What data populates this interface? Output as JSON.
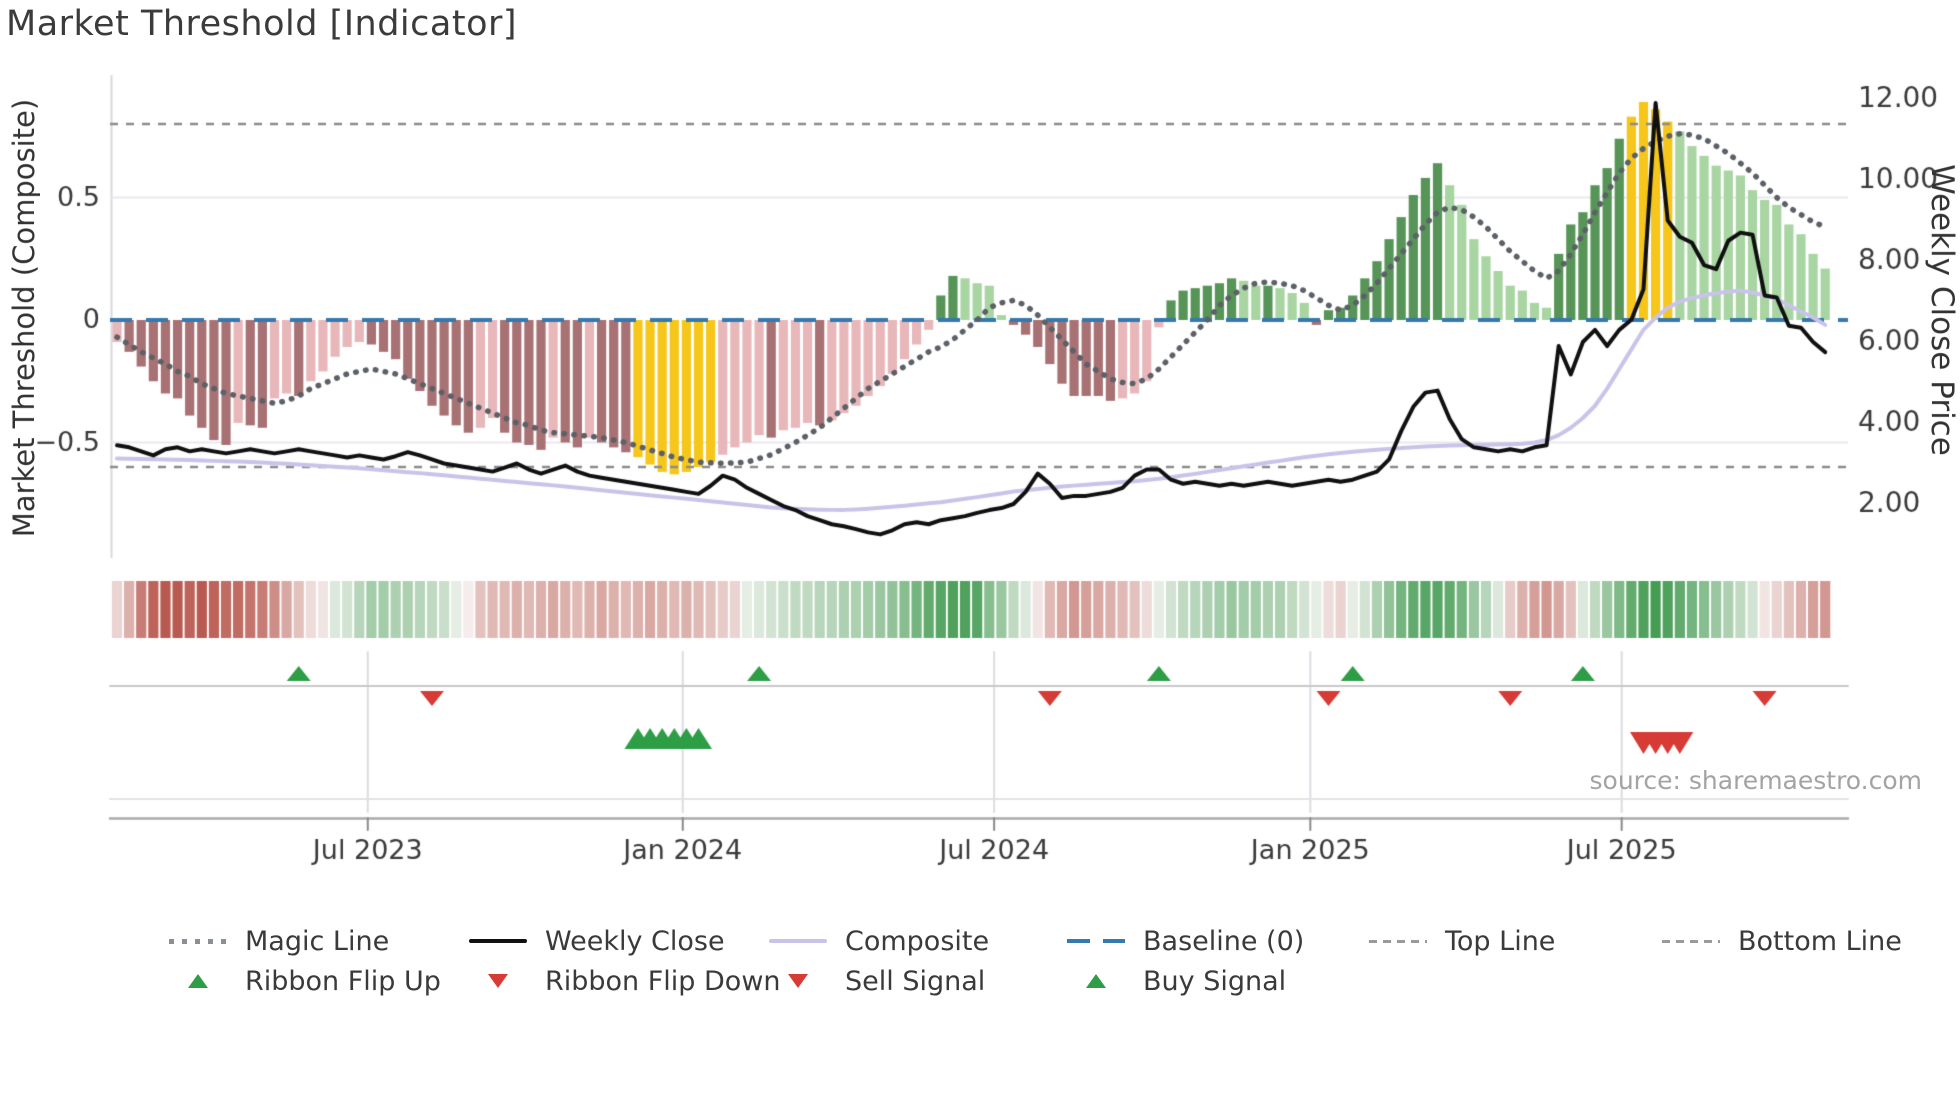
{
  "title": "Market Threshold [Indicator]",
  "source_text": "source: sharemaestro.com",
  "axes": {
    "left_title": "Market Threshold (Composite)",
    "right_title": "Weekly Close Price",
    "left_ticks": [
      {
        "label": "0.5",
        "value": 0.5
      },
      {
        "label": "0",
        "value": 0.0
      },
      {
        "label": "−0.5",
        "value": -0.5
      }
    ],
    "right_ticks": [
      {
        "label": "12.00",
        "value": 12.0
      },
      {
        "label": "10.00",
        "value": 10.0
      },
      {
        "label": "8.00",
        "value": 8.0
      },
      {
        "label": "6.00",
        "value": 6.0
      },
      {
        "label": "4.00",
        "value": 4.0
      },
      {
        "label": "2.00",
        "value": 2.0
      }
    ],
    "x_ticks": [
      {
        "label": "Jul 2023",
        "week": 20.7
      },
      {
        "label": "Jan 2024",
        "week": 46.7
      },
      {
        "label": "Jul 2024",
        "week": 72.4
      },
      {
        "label": "Jan 2025",
        "week": 98.5
      },
      {
        "label": "Jul 2025",
        "week": 124.2
      }
    ]
  },
  "legend": {
    "rows": [
      {
        "items": [
          {
            "label": "Magic Line",
            "marker": "dotted-line",
            "color": "#8a8f96"
          },
          {
            "label": "Weekly Close",
            "marker": "solid-line",
            "color": "#111111"
          },
          {
            "label": "Composite",
            "marker": "solid-line",
            "color": "#c9c3ea"
          },
          {
            "label": "Baseline (0)",
            "marker": "blue-dash",
            "color": "#3579ae"
          },
          {
            "label": "Top Line",
            "marker": "small-dash",
            "color": "#9a9a9a"
          },
          {
            "label": "Bottom Line",
            "marker": "small-dash",
            "color": "#9a9a9a"
          }
        ]
      },
      {
        "items": [
          {
            "label": "Ribbon Flip Up",
            "marker": "triangle-up",
            "color": "#2d9e45"
          },
          {
            "label": "Ribbon Flip Down",
            "marker": "triangle-down",
            "color": "#d63b35"
          },
          {
            "label": "Sell Signal",
            "marker": "triangle-down",
            "color": "#d63b35"
          },
          {
            "label": "Buy Signal",
            "marker": "triangle-up",
            "color": "#2d9e45"
          }
        ]
      }
    ]
  },
  "chart_data": {
    "type": "combo",
    "x_unit": "weeks",
    "n_points": 142,
    "x_tick_labels": [
      "Jul 2023",
      "Jan 2024",
      "Jul 2024",
      "Jan 2025",
      "Jul 2025"
    ],
    "left_axis_range": [
      -0.9,
      1.0
    ],
    "right_axis_range": [
      1.0,
      12.5
    ],
    "reference_lines": {
      "baseline": 0.0,
      "top_line": 0.8,
      "bottom_line": -0.6
    },
    "bar_palette": {
      "negative_dark": "#a87173",
      "negative_light": "#e8b7ba",
      "positive_dark": "#579457",
      "positive_light": "#a8d5a2",
      "highlight_yellow": "#f6c61b"
    },
    "yellow_ranges": [
      {
        "start": 43,
        "end": 49
      },
      {
        "start": 125,
        "end": 128
      }
    ],
    "histogram": [
      -0.09,
      -0.13,
      -0.19,
      -0.25,
      -0.3,
      -0.32,
      -0.39,
      -0.44,
      -0.49,
      -0.51,
      -0.42,
      -0.43,
      -0.44,
      -0.32,
      -0.3,
      -0.31,
      -0.25,
      -0.21,
      -0.15,
      -0.11,
      -0.09,
      -0.1,
      -0.13,
      -0.16,
      -0.24,
      -0.29,
      -0.35,
      -0.39,
      -0.43,
      -0.46,
      -0.44,
      -0.4,
      -0.46,
      -0.5,
      -0.51,
      -0.53,
      -0.48,
      -0.5,
      -0.52,
      -0.48,
      -0.5,
      -0.52,
      -0.54,
      -0.56,
      -0.59,
      -0.62,
      -0.63,
      -0.62,
      -0.6,
      -0.58,
      -0.55,
      -0.52,
      -0.5,
      -0.47,
      -0.48,
      -0.45,
      -0.44,
      -0.42,
      -0.43,
      -0.41,
      -0.38,
      -0.35,
      -0.31,
      -0.27,
      -0.22,
      -0.16,
      -0.1,
      -0.04,
      0.1,
      0.18,
      0.17,
      0.15,
      0.14,
      0.02,
      -0.02,
      -0.06,
      -0.11,
      -0.18,
      -0.26,
      -0.31,
      -0.31,
      -0.31,
      -0.33,
      -0.32,
      -0.3,
      -0.25,
      -0.03,
      0.08,
      0.12,
      0.13,
      0.14,
      0.15,
      0.17,
      0.16,
      0.14,
      0.14,
      0.13,
      0.11,
      0.07,
      -0.02,
      0.04,
      0.05,
      0.1,
      0.17,
      0.24,
      0.33,
      0.42,
      0.51,
      0.58,
      0.64,
      0.55,
      0.47,
      0.33,
      0.26,
      0.2,
      0.14,
      0.12,
      0.07,
      0.05,
      0.27,
      0.39,
      0.44,
      0.55,
      0.62,
      0.74,
      0.83,
      0.89,
      0.86,
      0.81,
      0.77,
      0.71,
      0.67,
      0.63,
      0.61,
      0.59,
      0.53,
      0.49,
      0.47,
      0.39,
      0.35,
      0.27,
      0.21
    ],
    "magic_line": [
      -0.07,
      -0.1,
      -0.13,
      -0.155,
      -0.18,
      -0.21,
      -0.23,
      -0.26,
      -0.28,
      -0.3,
      -0.31,
      -0.32,
      -0.33,
      -0.34,
      -0.33,
      -0.31,
      -0.28,
      -0.26,
      -0.24,
      -0.22,
      -0.21,
      -0.2,
      -0.21,
      -0.22,
      -0.24,
      -0.26,
      -0.28,
      -0.3,
      -0.32,
      -0.34,
      -0.36,
      -0.38,
      -0.4,
      -0.42,
      -0.43,
      -0.45,
      -0.46,
      -0.465,
      -0.47,
      -0.475,
      -0.48,
      -0.49,
      -0.5,
      -0.515,
      -0.53,
      -0.545,
      -0.56,
      -0.57,
      -0.58,
      -0.583,
      -0.585,
      -0.583,
      -0.58,
      -0.565,
      -0.55,
      -0.525,
      -0.5,
      -0.47,
      -0.44,
      -0.4,
      -0.36,
      -0.32,
      -0.28,
      -0.25,
      -0.22,
      -0.19,
      -0.16,
      -0.13,
      -0.11,
      -0.08,
      -0.04,
      0.0,
      0.05,
      0.07,
      0.08,
      0.06,
      0.02,
      -0.03,
      -0.08,
      -0.13,
      -0.18,
      -0.21,
      -0.24,
      -0.255,
      -0.26,
      -0.24,
      -0.2,
      -0.15,
      -0.1,
      -0.05,
      0.0,
      0.06,
      0.1,
      0.13,
      0.15,
      0.155,
      0.15,
      0.14,
      0.12,
      0.09,
      0.06,
      0.04,
      0.06,
      0.1,
      0.15,
      0.21,
      0.27,
      0.33,
      0.39,
      0.44,
      0.46,
      0.45,
      0.42,
      0.38,
      0.33,
      0.28,
      0.24,
      0.2,
      0.17,
      0.2,
      0.27,
      0.35,
      0.44,
      0.52,
      0.6,
      0.66,
      0.7,
      0.73,
      0.75,
      0.76,
      0.755,
      0.74,
      0.71,
      0.68,
      0.64,
      0.6,
      0.55,
      0.5,
      0.46,
      0.43,
      0.4,
      0.38
    ],
    "composite_line": [
      -0.565,
      -0.566,
      -0.567,
      -0.568,
      -0.569,
      -0.57,
      -0.571,
      -0.573,
      -0.575,
      -0.577,
      -0.578,
      -0.58,
      -0.582,
      -0.585,
      -0.587,
      -0.59,
      -0.593,
      -0.596,
      -0.599,
      -0.602,
      -0.605,
      -0.609,
      -0.613,
      -0.617,
      -0.621,
      -0.625,
      -0.63,
      -0.634,
      -0.639,
      -0.643,
      -0.648,
      -0.652,
      -0.657,
      -0.661,
      -0.666,
      -0.67,
      -0.675,
      -0.68,
      -0.685,
      -0.69,
      -0.695,
      -0.7,
      -0.705,
      -0.71,
      -0.715,
      -0.72,
      -0.725,
      -0.73,
      -0.735,
      -0.74,
      -0.745,
      -0.75,
      -0.755,
      -0.76,
      -0.765,
      -0.768,
      -0.77,
      -0.772,
      -0.774,
      -0.775,
      -0.775,
      -0.773,
      -0.77,
      -0.766,
      -0.762,
      -0.758,
      -0.753,
      -0.748,
      -0.744,
      -0.737,
      -0.73,
      -0.723,
      -0.715,
      -0.708,
      -0.7,
      -0.695,
      -0.69,
      -0.685,
      -0.68,
      -0.676,
      -0.672,
      -0.668,
      -0.665,
      -0.661,
      -0.658,
      -0.653,
      -0.648,
      -0.642,
      -0.635,
      -0.628,
      -0.62,
      -0.612,
      -0.605,
      -0.597,
      -0.59,
      -0.582,
      -0.575,
      -0.567,
      -0.56,
      -0.554,
      -0.548,
      -0.543,
      -0.538,
      -0.534,
      -0.53,
      -0.526,
      -0.522,
      -0.519,
      -0.516,
      -0.514,
      -0.512,
      -0.511,
      -0.51,
      -0.509,
      -0.508,
      -0.507,
      -0.505,
      -0.5,
      -0.49,
      -0.47,
      -0.44,
      -0.4,
      -0.35,
      -0.28,
      -0.2,
      -0.12,
      -0.04,
      0.01,
      0.05,
      0.075,
      0.09,
      0.1,
      0.11,
      0.115,
      0.12,
      0.112,
      0.1,
      0.085,
      0.06,
      0.035,
      0.01,
      -0.02
    ],
    "weekly_close": [
      3.45,
      3.4,
      3.3,
      3.2,
      3.35,
      3.4,
      3.3,
      3.35,
      3.3,
      3.25,
      3.3,
      3.35,
      3.3,
      3.25,
      3.3,
      3.35,
      3.3,
      3.25,
      3.2,
      3.15,
      3.2,
      3.15,
      3.1,
      3.18,
      3.28,
      3.2,
      3.1,
      3.0,
      2.95,
      2.9,
      2.85,
      2.8,
      2.9,
      3.0,
      2.85,
      2.75,
      2.85,
      2.95,
      2.8,
      2.7,
      2.65,
      2.6,
      2.55,
      2.5,
      2.45,
      2.4,
      2.35,
      2.3,
      2.25,
      2.45,
      2.7,
      2.6,
      2.4,
      2.25,
      2.1,
      1.95,
      1.85,
      1.7,
      1.6,
      1.5,
      1.45,
      1.38,
      1.3,
      1.25,
      1.35,
      1.5,
      1.55,
      1.5,
      1.6,
      1.65,
      1.7,
      1.78,
      1.85,
      1.9,
      2.0,
      2.3,
      2.75,
      2.5,
      2.15,
      2.2,
      2.2,
      2.25,
      2.3,
      2.4,
      2.7,
      2.85,
      2.85,
      2.6,
      2.5,
      2.55,
      2.5,
      2.45,
      2.5,
      2.45,
      2.5,
      2.55,
      2.5,
      2.45,
      2.5,
      2.55,
      2.6,
      2.55,
      2.6,
      2.7,
      2.8,
      3.1,
      3.8,
      4.4,
      4.75,
      4.8,
      4.1,
      3.6,
      3.4,
      3.35,
      3.3,
      3.35,
      3.3,
      3.4,
      3.45,
      5.9,
      5.2,
      6.0,
      6.3,
      5.9,
      6.3,
      6.55,
      7.3,
      11.9,
      9.0,
      8.6,
      8.45,
      7.9,
      7.8,
      8.5,
      8.7,
      8.65,
      7.15,
      7.1,
      6.4,
      6.35,
      6.0,
      5.75
    ],
    "heat_ribbon": [
      -0.2,
      -0.4,
      -0.7,
      -0.85,
      -0.9,
      -0.9,
      -0.85,
      -0.9,
      -0.85,
      -0.8,
      -0.8,
      -0.75,
      -0.7,
      -0.6,
      -0.45,
      -0.3,
      -0.15,
      -0.1,
      0.15,
      0.2,
      0.35,
      0.45,
      0.45,
      0.4,
      0.4,
      0.35,
      0.3,
      0.25,
      0.1,
      -0.05,
      -0.3,
      -0.35,
      -0.35,
      -0.4,
      -0.35,
      -0.4,
      -0.45,
      -0.4,
      -0.35,
      -0.4,
      -0.45,
      -0.4,
      -0.35,
      -0.4,
      -0.45,
      -0.4,
      -0.35,
      -0.4,
      -0.35,
      -0.3,
      -0.25,
      -0.2,
      0.1,
      0.15,
      0.2,
      0.25,
      0.3,
      0.3,
      0.35,
      0.35,
      0.4,
      0.4,
      0.45,
      0.5,
      0.55,
      0.6,
      0.7,
      0.8,
      0.85,
      0.9,
      0.9,
      0.85,
      0.6,
      0.5,
      0.3,
      0.15,
      -0.1,
      -0.35,
      -0.45,
      -0.55,
      -0.5,
      -0.45,
      -0.4,
      -0.35,
      -0.3,
      -0.15,
      0.1,
      0.2,
      0.3,
      0.35,
      0.4,
      0.45,
      0.5,
      0.45,
      0.45,
      0.4,
      0.4,
      0.3,
      0.2,
      0.1,
      -0.15,
      -0.2,
      0.1,
      0.2,
      0.4,
      0.55,
      0.7,
      0.8,
      0.85,
      0.85,
      0.8,
      0.7,
      0.5,
      0.35,
      0.15,
      -0.25,
      -0.4,
      -0.5,
      -0.55,
      -0.45,
      -0.3,
      0.15,
      0.3,
      0.5,
      0.65,
      0.8,
      0.9,
      0.95,
      0.9,
      0.8,
      0.7,
      0.6,
      0.5,
      0.4,
      0.3,
      0.2,
      -0.1,
      -0.2,
      -0.3,
      -0.4,
      -0.5,
      -0.55
    ],
    "signals": {
      "ribbon_flip_up_weeks": [
        15,
        53,
        86,
        102,
        121
      ],
      "ribbon_flip_down_weeks": [
        26,
        77,
        100,
        115,
        136
      ],
      "buy_signal_weeks": [
        43,
        44,
        45,
        46,
        47,
        48
      ],
      "sell_signal_weeks": [
        126,
        127,
        128,
        129
      ],
      "up_color": "#2d9e45",
      "down_color": "#d63b35"
    },
    "line_colors": {
      "magic": "#5c6067",
      "composite": "#c9c3ea",
      "weekly_close": "#101010",
      "baseline": "#3579ae",
      "ref_dash": "#8c8c8c"
    }
  }
}
